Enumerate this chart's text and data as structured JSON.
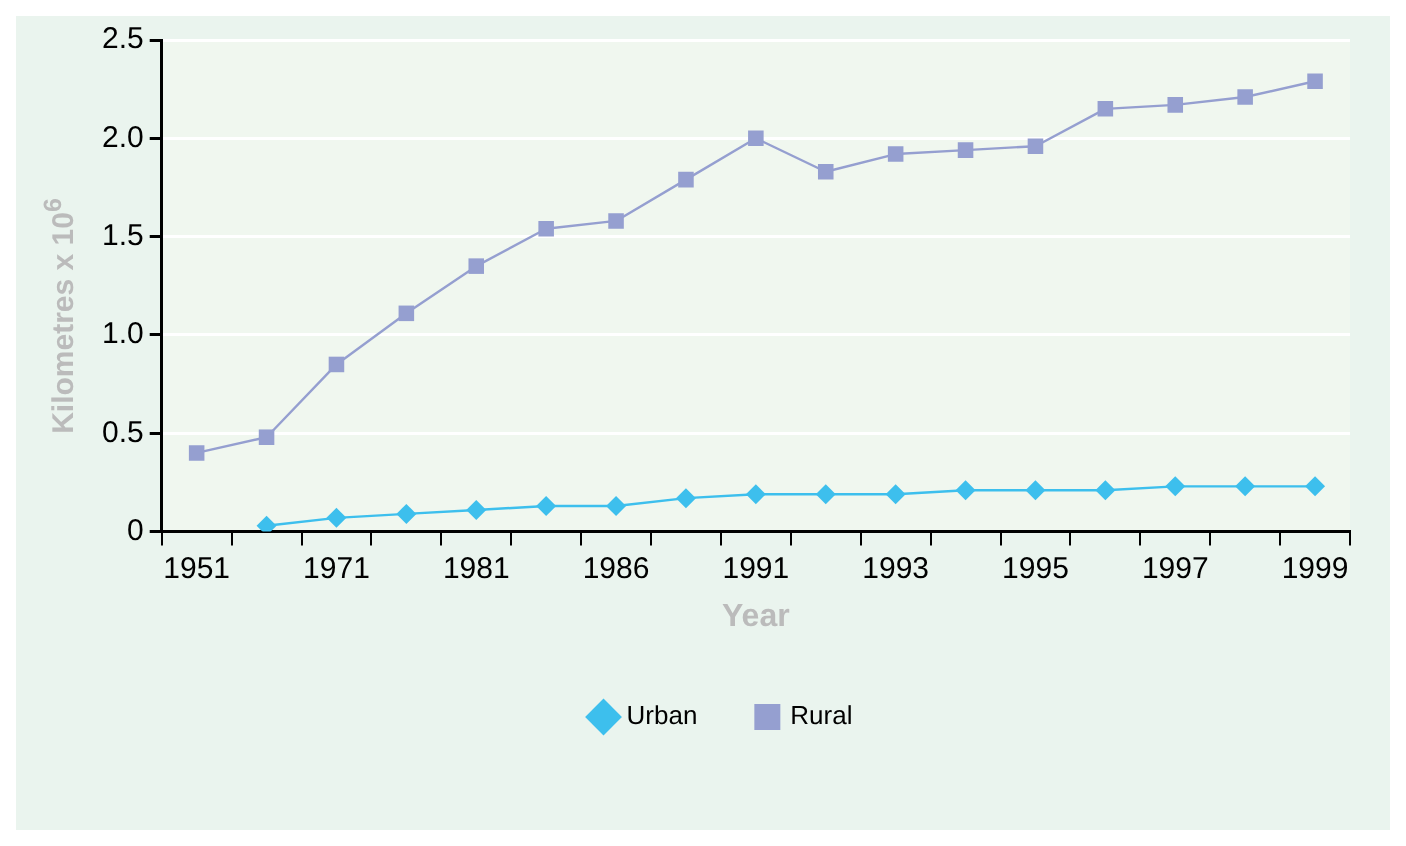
{
  "chart_data": {
    "type": "line",
    "xlabel": "Year",
    "ylabel": "Kilometres x 10$^{6}$",
    "categories": [
      "1951",
      null,
      "1971",
      null,
      "1981",
      null,
      "1986",
      null,
      "1991",
      null,
      "1993",
      null,
      "1995",
      null,
      "1997",
      null,
      "1999"
    ],
    "series": [
      {
        "name": "Urban",
        "color": "#3dbfed",
        "marker": "diamond",
        "values": [
          null,
          0.03,
          0.07,
          0.09,
          0.11,
          0.13,
          0.13,
          0.17,
          0.19,
          0.19,
          0.19,
          0.21,
          0.21,
          0.21,
          0.23,
          0.23,
          0.23
        ]
      },
      {
        "name": "Rural",
        "color": "#959fd0",
        "marker": "square",
        "values": [
          0.4,
          0.48,
          0.85,
          1.11,
          1.35,
          1.54,
          1.58,
          1.79,
          2.0,
          1.83,
          1.92,
          1.94,
          1.96,
          2.15,
          2.17,
          2.21,
          2.29
        ]
      }
    ],
    "ylim": [
      0,
      2.5
    ],
    "yticks": [
      {
        "value": 0,
        "label": "0"
      },
      {
        "value": 0.5,
        "label": "0.5"
      },
      {
        "value": 1,
        "label": "1.0"
      },
      {
        "value": 1.5,
        "label": "1.5"
      },
      {
        "value": 2,
        "label": "2.0"
      },
      {
        "value": 2.5,
        "label": "2.5"
      }
    ],
    "grid": "y",
    "legend": "bottom",
    "line_style": "solid"
  }
}
